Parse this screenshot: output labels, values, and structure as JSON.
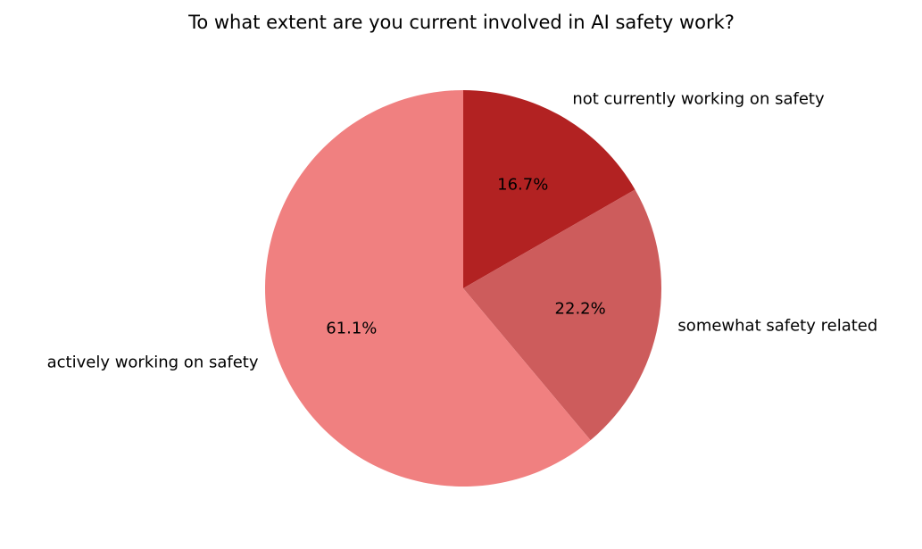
{
  "chart_data": {
    "type": "pie",
    "title": "To what extent are you current involved in AI safety work?",
    "categories": [
      "not currently working on safety",
      "somewhat safety related",
      "actively working on safety"
    ],
    "values": [
      16.7,
      22.2,
      61.1
    ],
    "value_labels": [
      "16.7%",
      "22.2%",
      "61.1%"
    ],
    "colors": [
      "#b22222",
      "#cd5c5c",
      "#f08080"
    ]
  }
}
